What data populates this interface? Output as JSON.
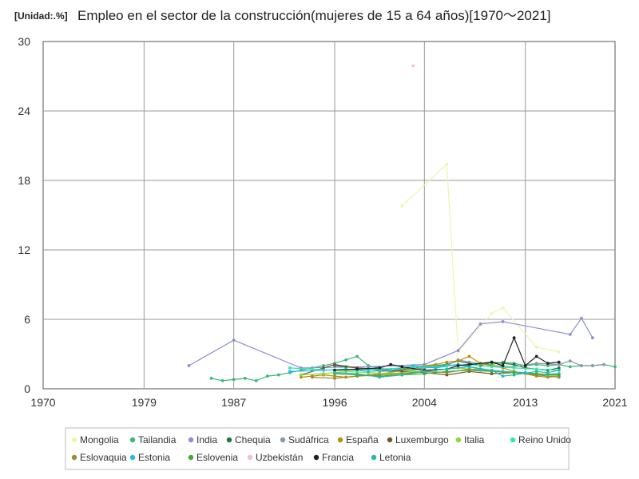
{
  "chart_data": {
    "type": "line",
    "unit_label": "[Unidad:.%]",
    "title": "Empleo en el sector de la construcción(mujeres de 15 a 64 años)[1970～2021]",
    "xlabel": "",
    "ylabel": "",
    "xlim": [
      1970,
      2021
    ],
    "ylim": [
      0,
      30
    ],
    "x_ticks": [
      1970,
      1979,
      1987,
      1996,
      2004,
      2013,
      2021
    ],
    "y_ticks": [
      0,
      6,
      12,
      18,
      24,
      30
    ],
    "grid": true,
    "legend_position": "bottom",
    "series": [
      {
        "name": "Mongolia",
        "color": "#eef5b0",
        "points": [
          [
            2002,
            15.8
          ],
          [
            2006,
            19.4
          ],
          [
            2007,
            3.2
          ],
          [
            2010,
            6.5
          ],
          [
            2011,
            7.0
          ],
          [
            2014,
            3.6
          ],
          [
            2016,
            3.2
          ]
        ]
      },
      {
        "name": "Tailandia",
        "color": "#3cb878",
        "points": [
          [
            1985,
            0.9
          ],
          [
            1986,
            0.7
          ],
          [
            1987,
            0.8
          ],
          [
            1988,
            0.9
          ],
          [
            1989,
            0.7
          ],
          [
            1990,
            1.1
          ],
          [
            1991,
            1.2
          ],
          [
            1992,
            1.4
          ],
          [
            1993,
            1.6
          ],
          [
            1994,
            1.8
          ],
          [
            1995,
            2.0
          ],
          [
            1996,
            2.2
          ],
          [
            1997,
            2.5
          ],
          [
            1998,
            2.8
          ],
          [
            1999,
            2.0
          ],
          [
            2000,
            1.8
          ],
          [
            2001,
            1.6
          ],
          [
            2002,
            1.5
          ],
          [
            2003,
            1.6
          ],
          [
            2004,
            1.8
          ],
          [
            2005,
            1.9
          ],
          [
            2006,
            2.0
          ],
          [
            2007,
            2.1
          ],
          [
            2008,
            2.0
          ],
          [
            2009,
            2.2
          ],
          [
            2010,
            2.1
          ],
          [
            2011,
            2.3
          ],
          [
            2012,
            2.2
          ],
          [
            2013,
            2.0
          ],
          [
            2014,
            2.1
          ],
          [
            2015,
            2.0
          ],
          [
            2016,
            2.1
          ],
          [
            2017,
            1.9
          ],
          [
            2018,
            2.0
          ],
          [
            2019,
            2.0
          ],
          [
            2020,
            2.1
          ],
          [
            2021,
            1.9
          ]
        ]
      },
      {
        "name": "India",
        "color": "#8e8ed8",
        "points": [
          [
            1983,
            2.0
          ],
          [
            1987,
            4.2
          ],
          [
            1993,
            1.8
          ],
          [
            1999,
            1.9
          ],
          [
            2004,
            2.1
          ],
          [
            2007,
            3.3
          ],
          [
            2009,
            5.6
          ],
          [
            2011,
            5.8
          ],
          [
            2017,
            4.7
          ],
          [
            2018,
            6.1
          ],
          [
            2019,
            4.4
          ]
        ]
      },
      {
        "name": "Chequia",
        "color": "#1a7a3a",
        "points": [
          [
            1996,
            2.0
          ],
          [
            1997,
            1.9
          ],
          [
            1998,
            1.8
          ],
          [
            1999,
            1.7
          ],
          [
            2000,
            1.6
          ],
          [
            2001,
            1.5
          ],
          [
            2002,
            1.7
          ],
          [
            2003,
            1.8
          ],
          [
            2004,
            1.9
          ],
          [
            2005,
            2.0
          ],
          [
            2006,
            2.1
          ],
          [
            2007,
            2.4
          ],
          [
            2008,
            2.2
          ],
          [
            2009,
            2.0
          ],
          [
            2010,
            2.3
          ],
          [
            2011,
            2.2
          ],
          [
            2012,
            2.1
          ],
          [
            2013,
            1.8
          ],
          [
            2014,
            1.7
          ],
          [
            2015,
            1.6
          ],
          [
            2016,
            1.8
          ]
        ]
      },
      {
        "name": "Sudáfrica",
        "color": "#8898a8",
        "points": [
          [
            2000,
            1.5
          ],
          [
            2002,
            1.6
          ],
          [
            2004,
            1.8
          ],
          [
            2006,
            2.0
          ],
          [
            2007,
            2.5
          ],
          [
            2008,
            2.3
          ],
          [
            2010,
            2.0
          ],
          [
            2012,
            1.9
          ],
          [
            2014,
            2.2
          ],
          [
            2016,
            2.1
          ],
          [
            2017,
            2.4
          ],
          [
            2018,
            2.0
          ],
          [
            2019,
            2.0
          ],
          [
            2020,
            2.1
          ]
        ]
      },
      {
        "name": "España",
        "color": "#b8900c",
        "points": [
          [
            1993,
            1.0
          ],
          [
            1994,
            1.1
          ],
          [
            1995,
            1.2
          ],
          [
            1996,
            1.1
          ],
          [
            1997,
            1.0
          ],
          [
            1998,
            1.1
          ],
          [
            1999,
            1.2
          ],
          [
            2000,
            1.3
          ],
          [
            2001,
            1.4
          ],
          [
            2002,
            1.6
          ],
          [
            2003,
            1.8
          ],
          [
            2004,
            2.0
          ],
          [
            2005,
            2.1
          ],
          [
            2006,
            2.3
          ],
          [
            2007,
            2.4
          ],
          [
            2008,
            2.8
          ],
          [
            2009,
            2.2
          ],
          [
            2010,
            2.0
          ],
          [
            2011,
            1.8
          ],
          [
            2012,
            1.5
          ],
          [
            2013,
            1.3
          ],
          [
            2014,
            1.1
          ],
          [
            2015,
            1.0
          ],
          [
            2016,
            1.1
          ]
        ]
      },
      {
        "name": "Luxemburgo",
        "color": "#7a5230",
        "points": [
          [
            1993,
            1.2
          ],
          [
            1995,
            1.8
          ],
          [
            1996,
            2.1
          ],
          [
            1998,
            1.8
          ],
          [
            2000,
            1.7
          ],
          [
            2002,
            1.5
          ],
          [
            2004,
            1.4
          ],
          [
            2006,
            1.2
          ],
          [
            2008,
            1.5
          ],
          [
            2010,
            1.3
          ],
          [
            2012,
            1.4
          ],
          [
            2014,
            1.2
          ],
          [
            2016,
            1.3
          ]
        ]
      },
      {
        "name": "Italia",
        "color": "#88dd33",
        "points": [
          [
            1993,
            1.2
          ],
          [
            1995,
            1.3
          ],
          [
            1997,
            1.5
          ],
          [
            1999,
            1.4
          ],
          [
            2001,
            1.3
          ],
          [
            2003,
            1.5
          ],
          [
            2005,
            1.6
          ],
          [
            2007,
            1.8
          ],
          [
            2009,
            1.6
          ],
          [
            2011,
            1.5
          ],
          [
            2013,
            1.3
          ],
          [
            2015,
            1.2
          ],
          [
            2016,
            1.1
          ]
        ]
      },
      {
        "name": "Reino Unido",
        "color": "#33e8aa",
        "points": [
          [
            1992,
            1.8
          ],
          [
            1994,
            1.7
          ],
          [
            1996,
            1.6
          ],
          [
            1998,
            1.6
          ],
          [
            2000,
            1.7
          ],
          [
            2002,
            1.8
          ],
          [
            2004,
            1.9
          ],
          [
            2006,
            2.0
          ],
          [
            2008,
            2.1
          ],
          [
            2010,
            1.9
          ],
          [
            2012,
            1.8
          ],
          [
            2014,
            1.7
          ],
          [
            2016,
            1.6
          ]
        ]
      },
      {
        "name": "Eslovaquia",
        "color": "#a08838",
        "points": [
          [
            1994,
            1.0
          ],
          [
            1996,
            0.9
          ],
          [
            1998,
            1.1
          ],
          [
            2000,
            1.2
          ],
          [
            2002,
            1.3
          ],
          [
            2004,
            1.5
          ],
          [
            2006,
            1.4
          ],
          [
            2008,
            1.7
          ],
          [
            2010,
            1.6
          ],
          [
            2012,
            1.4
          ],
          [
            2014,
            1.2
          ],
          [
            2016,
            1.0
          ]
        ]
      },
      {
        "name": "Estonia",
        "color": "#22bbee",
        "points": [
          [
            1992,
            1.5
          ],
          [
            1995,
            1.6
          ],
          [
            1997,
            1.7
          ],
          [
            1999,
            1.5
          ],
          [
            2001,
            1.6
          ],
          [
            2003,
            2.0
          ],
          [
            2005,
            1.8
          ],
          [
            2007,
            2.1
          ],
          [
            2009,
            1.7
          ],
          [
            2011,
            1.5
          ],
          [
            2013,
            1.4
          ],
          [
            2015,
            1.2
          ],
          [
            2016,
            1.3
          ]
        ]
      },
      {
        "name": "Eslovenia",
        "color": "#44aa33",
        "points": [
          [
            1996,
            1.3
          ],
          [
            1998,
            1.2
          ],
          [
            2000,
            1.1
          ],
          [
            2002,
            1.2
          ],
          [
            2004,
            1.3
          ],
          [
            2006,
            1.5
          ],
          [
            2008,
            1.6
          ],
          [
            2010,
            1.5
          ],
          [
            2012,
            1.4
          ],
          [
            2014,
            1.3
          ],
          [
            2016,
            1.2
          ]
        ]
      },
      {
        "name": "Uzbekistán",
        "color": "#f2c0d0",
        "points": [
          [
            2003,
            27.9
          ]
        ]
      },
      {
        "name": "Francia",
        "color": "#222222",
        "points": [
          [
            1996,
            1.6
          ],
          [
            1998,
            1.7
          ],
          [
            2000,
            1.8
          ],
          [
            2001,
            2.1
          ],
          [
            2002,
            1.9
          ],
          [
            2004,
            1.6
          ],
          [
            2006,
            1.7
          ],
          [
            2007,
            2.0
          ],
          [
            2008,
            2.1
          ],
          [
            2010,
            2.3
          ],
          [
            2011,
            2.0
          ],
          [
            2012,
            4.4
          ],
          [
            2013,
            2.0
          ],
          [
            2014,
            2.8
          ],
          [
            2015,
            2.2
          ],
          [
            2016,
            2.3
          ]
        ]
      },
      {
        "name": "Letonia",
        "color": "#22bbaa",
        "points": [
          [
            1996,
            1.4
          ],
          [
            1998,
            1.3
          ],
          [
            2000,
            1.0
          ],
          [
            2002,
            1.2
          ],
          [
            2004,
            1.5
          ],
          [
            2006,
            1.7
          ],
          [
            2008,
            1.9
          ],
          [
            2010,
            1.6
          ],
          [
            2011,
            1.1
          ],
          [
            2012,
            1.2
          ],
          [
            2014,
            1.5
          ],
          [
            2015,
            1.4
          ],
          [
            2016,
            1.6
          ]
        ]
      }
    ]
  }
}
